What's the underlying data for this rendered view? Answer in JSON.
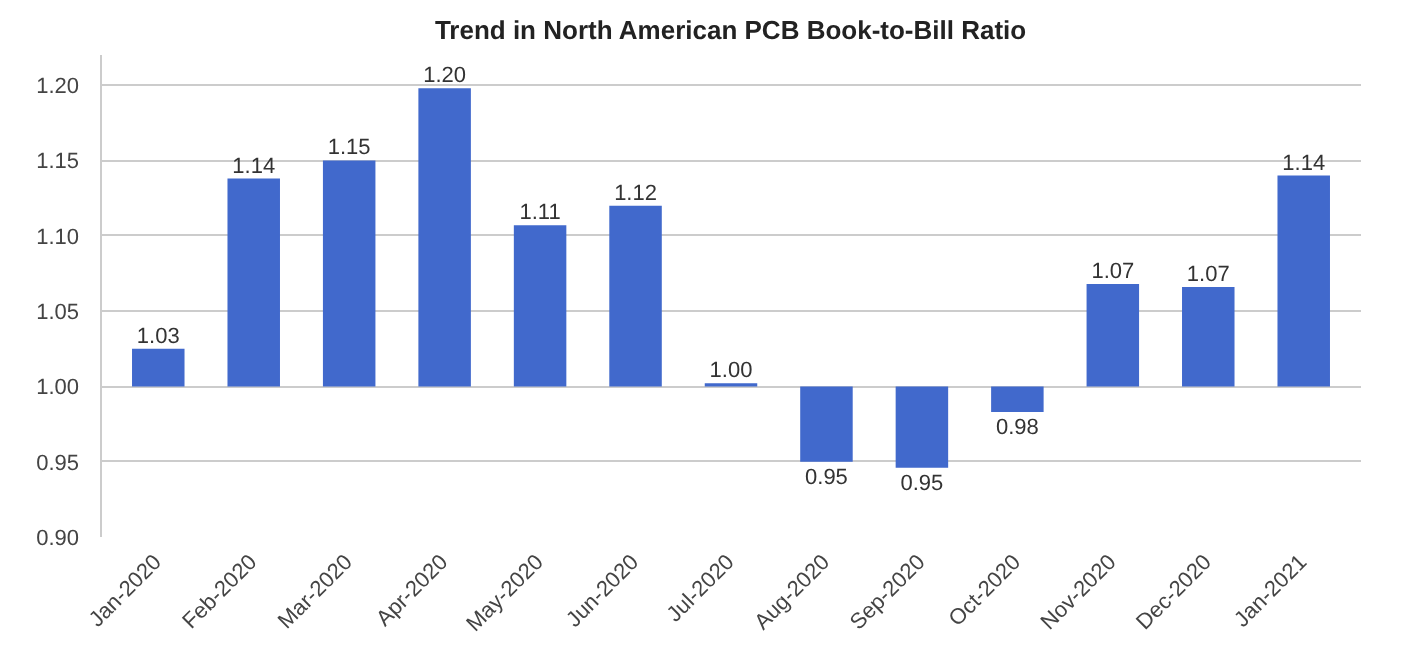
{
  "chart_data": {
    "type": "bar",
    "title": "Trend in North American PCB Book-to-Bill Ratio",
    "categories": [
      "Jan-2020",
      "Feb-2020",
      "Mar-2020",
      "Apr-2020",
      "May-2020",
      "Jun-2020",
      "Jul-2020",
      "Aug-2020",
      "Sep-2020",
      "Oct-2020",
      "Nov-2020",
      "Dec-2020",
      "Jan-2021"
    ],
    "base": [
      1.0,
      1.0,
      1.0,
      1.0,
      1.0,
      1.0,
      1.0,
      1.0,
      1.0,
      1.0,
      1.0,
      1.0,
      1.0
    ],
    "values": [
      0.025,
      0.138,
      0.15,
      0.198,
      0.107,
      0.12,
      0.002,
      -0.05,
      -0.054,
      -0.017,
      0.068,
      0.066,
      0.14
    ],
    "value_labels": [
      "1.03",
      "1.14",
      "1.15",
      "1.20",
      "1.11",
      "1.12",
      "1.00",
      "0.95",
      "0.95",
      "0.98",
      "1.07",
      "1.07",
      "1.14"
    ],
    "color": "#4169cc",
    "ylim": [
      0.9,
      1.22
    ],
    "yticks": [
      {
        "value": 0.9,
        "label": "0.90"
      },
      {
        "value": 0.95,
        "label": "0.95"
      },
      {
        "value": 1.0,
        "label": "1.00"
      },
      {
        "value": 1.05,
        "label": "1.05"
      },
      {
        "value": 1.1,
        "label": "1.10"
      },
      {
        "value": 1.15,
        "label": "1.15"
      },
      {
        "value": 1.2,
        "label": "1.20"
      }
    ],
    "grid": "y"
  }
}
